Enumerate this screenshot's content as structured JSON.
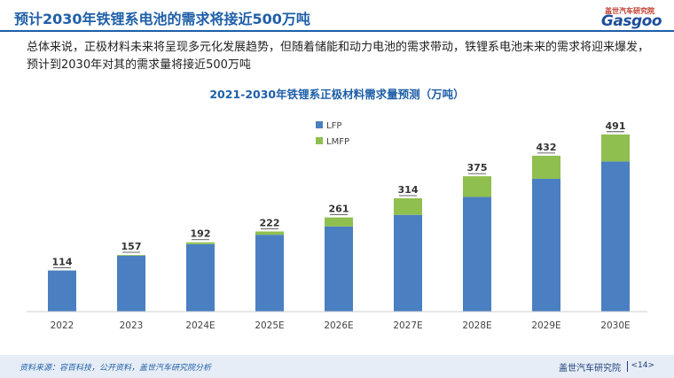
{
  "header": {
    "title": "预计2030年铁锂系电池的需求将接近500万吨",
    "logo_cn": "盖世汽车研究院",
    "logo_en": "Gasgoo"
  },
  "body_text": "总体来说，正极材料未来将呈现多元化发展趋势，但随着储能和动力电池的需求带动，铁锂系电池未来的需求将迎来爆发，预计到2030年对其的需求量将接近500万吨",
  "colors": {
    "lfp": "#4a7fc1",
    "lmfp": "#8fbf4e",
    "accent": "#1f5fa8"
  },
  "chart_data": {
    "type": "bar",
    "stacked": true,
    "title": "2021-2030年铁锂系正极材料需求量预测（万吨）",
    "categories": [
      "2022",
      "2023",
      "2024E",
      "2025E",
      "2026E",
      "2027E",
      "2028E",
      "2029E",
      "2030E"
    ],
    "series": [
      {
        "name": "LFP",
        "color": "#4a7fc1",
        "values": [
          114,
          155,
          187,
          213,
          236,
          268,
          318,
          368,
          416
        ]
      },
      {
        "name": "LMFP",
        "color": "#8fbf4e",
        "values": [
          0,
          2,
          5,
          9,
          25,
          46,
          57,
          64,
          75
        ]
      }
    ],
    "totals": [
      114,
      157,
      192,
      222,
      261,
      314,
      375,
      432,
      491
    ],
    "ylim": [
      0,
      520
    ],
    "legend": "top-left"
  },
  "footer": {
    "source": "资料来源：容百科技，公开资料，盖世汽车研究院分析",
    "brand": "盖世汽车研究院",
    "page": "<14>"
  }
}
